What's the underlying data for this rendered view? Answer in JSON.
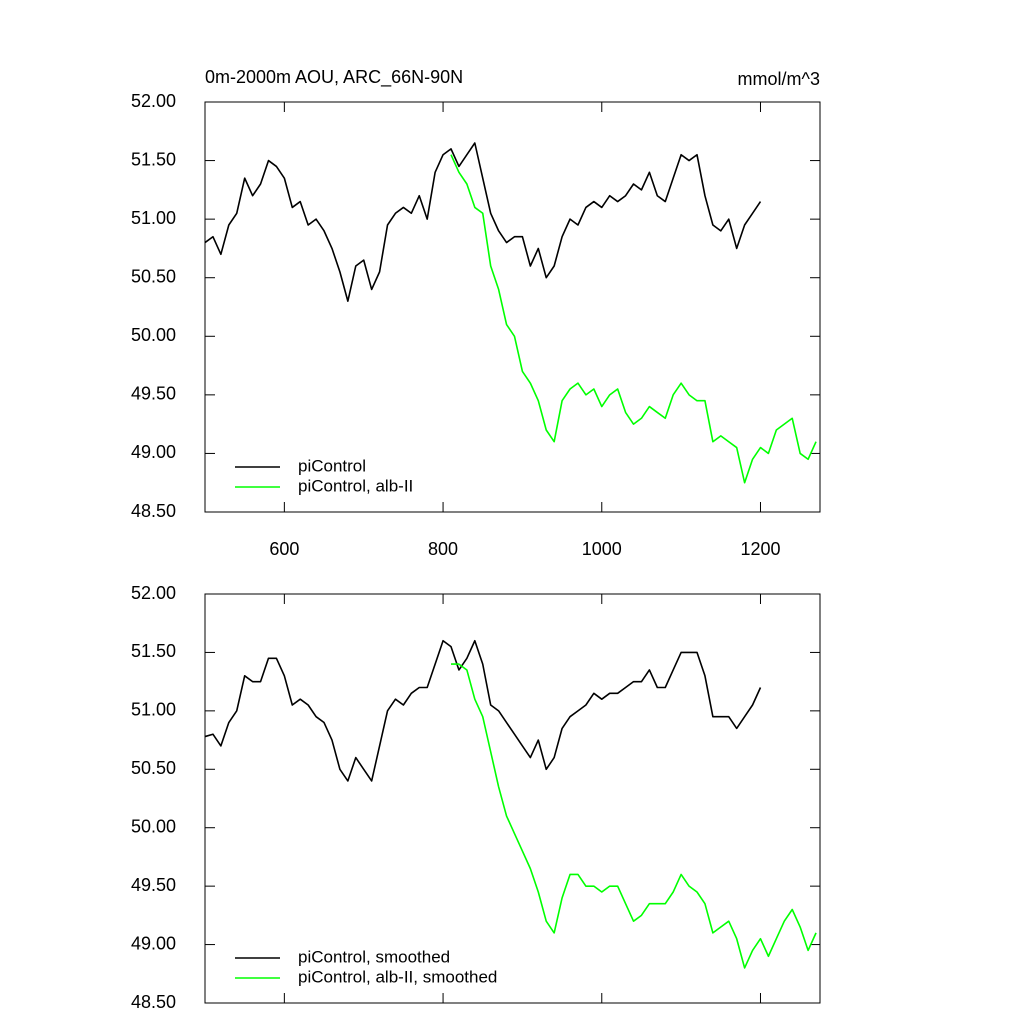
{
  "chart_data": [
    {
      "type": "line",
      "title": "0m-2000m AOU, ARC_66N-90N",
      "units": "mmol/m^3",
      "xlim": [
        500,
        1275
      ],
      "xticks": [
        600,
        800,
        1000,
        1200
      ],
      "ylim": [
        48.5,
        52
      ],
      "yticks": [
        {
          "value": 48.5,
          "label": "48.50"
        },
        {
          "value": 49,
          "label": "49.00"
        },
        {
          "value": 49.5,
          "label": "49.50"
        },
        {
          "value": 50,
          "label": "50.00"
        },
        {
          "value": 50.5,
          "label": "50.50"
        },
        {
          "value": 51,
          "label": "51.00"
        },
        {
          "value": 51.5,
          "label": "51.50"
        },
        {
          "value": 52,
          "label": "52.00"
        }
      ],
      "legend": "lower left",
      "x": [
        500,
        510,
        520,
        530,
        540,
        550,
        560,
        570,
        580,
        590,
        600,
        610,
        620,
        630,
        640,
        650,
        660,
        670,
        680,
        690,
        700,
        710,
        720,
        730,
        740,
        750,
        760,
        770,
        780,
        790,
        800,
        810,
        820,
        830,
        840,
        850,
        860,
        870,
        880,
        890,
        900,
        910,
        920,
        930,
        940,
        950,
        960,
        970,
        980,
        990,
        1000,
        1010,
        1020,
        1030,
        1040,
        1050,
        1060,
        1070,
        1080,
        1090,
        1100,
        1110,
        1120,
        1130,
        1140,
        1150,
        1160,
        1170,
        1180,
        1190,
        1200,
        1210,
        1220,
        1230,
        1240,
        1250,
        1260,
        1270
      ],
      "series": [
        {
          "name": "piControl",
          "color": "#000000",
          "values": [
            50.8,
            50.85,
            50.7,
            50.95,
            51.05,
            51.35,
            51.2,
            51.3,
            51.5,
            51.45,
            51.35,
            51.1,
            51.15,
            50.95,
            51.0,
            50.9,
            50.75,
            50.55,
            50.3,
            50.6,
            50.65,
            50.4,
            50.55,
            50.95,
            51.05,
            51.1,
            51.05,
            51.2,
            51.0,
            51.4,
            51.55,
            51.6,
            51.45,
            51.55,
            51.65,
            51.35,
            51.05,
            50.9,
            50.8,
            50.85,
            50.85,
            50.6,
            50.75,
            50.5,
            50.6,
            50.85,
            51.0,
            50.95,
            51.1,
            51.15,
            51.1,
            51.2,
            51.15,
            51.2,
            51.3,
            51.25,
            51.4,
            51.2,
            51.15,
            51.35,
            51.55,
            51.5,
            51.55,
            51.2,
            50.95,
            50.9,
            51.0,
            50.75,
            50.95,
            51.05,
            51.15,
            null,
            null,
            null,
            null,
            null,
            null,
            null
          ]
        },
        {
          "name": "piControl, alb-II",
          "color": "#00ff00",
          "values": [
            null,
            null,
            null,
            null,
            null,
            null,
            null,
            null,
            null,
            null,
            null,
            null,
            null,
            null,
            null,
            null,
            null,
            null,
            null,
            null,
            null,
            null,
            null,
            null,
            null,
            null,
            null,
            null,
            null,
            null,
            null,
            51.55,
            51.4,
            51.3,
            51.1,
            51.05,
            50.6,
            50.4,
            50.1,
            50.0,
            49.7,
            49.6,
            49.45,
            49.2,
            49.1,
            49.45,
            49.55,
            49.6,
            49.5,
            49.55,
            49.4,
            49.5,
            49.55,
            49.35,
            49.25,
            49.3,
            49.4,
            49.35,
            49.3,
            49.5,
            49.6,
            49.5,
            49.45,
            49.45,
            49.1,
            49.15,
            49.1,
            49.05,
            48.75,
            48.95,
            49.05,
            49.0,
            49.2,
            49.25,
            49.3,
            49.0,
            48.95,
            49.1
          ]
        }
      ]
    },
    {
      "type": "line",
      "xlim": [
        500,
        1275
      ],
      "ylim": [
        48.5,
        52
      ],
      "yticks": [
        {
          "value": 48.5,
          "label": "48.50"
        },
        {
          "value": 49,
          "label": "49.00"
        },
        {
          "value": 49.5,
          "label": "49.50"
        },
        {
          "value": 50,
          "label": "50.00"
        },
        {
          "value": 50.5,
          "label": "50.50"
        },
        {
          "value": 51,
          "label": "51.00"
        },
        {
          "value": 51.5,
          "label": "51.50"
        },
        {
          "value": 52,
          "label": "52.00"
        }
      ],
      "legend": "lower left",
      "x": [
        500,
        510,
        520,
        530,
        540,
        550,
        560,
        570,
        580,
        590,
        600,
        610,
        620,
        630,
        640,
        650,
        660,
        670,
        680,
        690,
        700,
        710,
        720,
        730,
        740,
        750,
        760,
        770,
        780,
        790,
        800,
        810,
        820,
        830,
        840,
        850,
        860,
        870,
        880,
        890,
        900,
        910,
        920,
        930,
        940,
        950,
        960,
        970,
        980,
        990,
        1000,
        1010,
        1020,
        1030,
        1040,
        1050,
        1060,
        1070,
        1080,
        1090,
        1100,
        1110,
        1120,
        1130,
        1140,
        1150,
        1160,
        1170,
        1180,
        1190,
        1200,
        1210,
        1220,
        1230,
        1240,
        1250,
        1260,
        1270
      ],
      "series": [
        {
          "name": "piControl, smoothed",
          "color": "#000000",
          "values": [
            50.78,
            50.8,
            50.7,
            50.9,
            51.0,
            51.3,
            51.25,
            51.25,
            51.45,
            51.45,
            51.3,
            51.05,
            51.1,
            51.05,
            50.95,
            50.9,
            50.75,
            50.5,
            50.4,
            50.6,
            50.5,
            50.4,
            50.7,
            51.0,
            51.1,
            51.05,
            51.15,
            51.2,
            51.2,
            51.4,
            51.6,
            51.55,
            51.35,
            51.45,
            51.6,
            51.4,
            51.05,
            51.0,
            50.9,
            50.8,
            50.7,
            50.6,
            50.75,
            50.5,
            50.6,
            50.85,
            50.95,
            51.0,
            51.05,
            51.15,
            51.1,
            51.15,
            51.15,
            51.2,
            51.25,
            51.25,
            51.35,
            51.2,
            51.2,
            51.35,
            51.5,
            51.5,
            51.5,
            51.3,
            50.95,
            50.95,
            50.95,
            50.85,
            50.95,
            51.05,
            51.2,
            null,
            null,
            null,
            null,
            null,
            null,
            null
          ]
        },
        {
          "name": "piControl, alb-II, smoothed",
          "color": "#00ff00",
          "values": [
            null,
            null,
            null,
            null,
            null,
            null,
            null,
            null,
            null,
            null,
            null,
            null,
            null,
            null,
            null,
            null,
            null,
            null,
            null,
            null,
            null,
            null,
            null,
            null,
            null,
            null,
            null,
            null,
            null,
            null,
            null,
            51.4,
            51.4,
            51.35,
            51.1,
            50.95,
            50.65,
            50.35,
            50.1,
            49.95,
            49.8,
            49.65,
            49.45,
            49.2,
            49.1,
            49.4,
            49.6,
            49.6,
            49.5,
            49.5,
            49.45,
            49.5,
            49.5,
            49.35,
            49.2,
            49.25,
            49.35,
            49.35,
            49.35,
            49.45,
            49.6,
            49.5,
            49.45,
            49.35,
            49.1,
            49.15,
            49.2,
            49.05,
            48.8,
            48.95,
            49.05,
            48.9,
            49.05,
            49.2,
            49.3,
            49.15,
            48.95,
            49.1
          ]
        }
      ]
    }
  ]
}
